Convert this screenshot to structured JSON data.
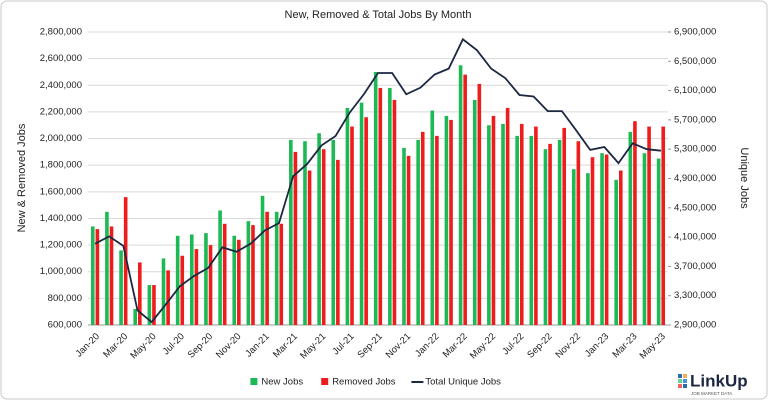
{
  "chart_data": {
    "type": "bar",
    "title": "New, Removed & Total Jobs By Month",
    "ylabel": "New & Removed Jobs",
    "y2label": "Unique Jobs",
    "categories": [
      "Jan-20",
      null,
      "Mar-20",
      null,
      "May-20",
      null,
      "Jul-20",
      null,
      "Sep-20",
      null,
      "Nov-20",
      null,
      "Jan-21",
      null,
      "Mar-21",
      null,
      "May-21",
      null,
      "Jul-21",
      null,
      "Sep-21",
      null,
      "Nov-21",
      null,
      "Jan-22",
      null,
      "Mar-22",
      null,
      "May-22",
      null,
      "Jul-22",
      null,
      "Sep-22",
      null,
      "Nov-22",
      null,
      "Jan-23",
      null,
      "Mar-23",
      null,
      "May-23"
    ],
    "series": [
      {
        "name": "New Jobs",
        "color": "#1db954",
        "type": "bar",
        "values": [
          1340000,
          1450000,
          1160000,
          720000,
          900000,
          1100000,
          1270000,
          1280000,
          1290000,
          1460000,
          1270000,
          1380000,
          1570000,
          1450000,
          1990000,
          1980000,
          2040000,
          1990000,
          2230000,
          2270000,
          2500000,
          2380000,
          1930000,
          1990000,
          2210000,
          2170000,
          2550000,
          2290000,
          2100000,
          2110000,
          2020000,
          2020000,
          1920000,
          1990000,
          1770000,
          1740000,
          1890000,
          1690000,
          2050000,
          1890000,
          1850000
        ]
      },
      {
        "name": "Removed Jobs",
        "color": "#ee1c1c",
        "type": "bar",
        "values": [
          1320000,
          1340000,
          1560000,
          1070000,
          900000,
          1010000,
          1120000,
          1170000,
          1200000,
          1360000,
          1240000,
          1350000,
          1450000,
          1360000,
          1900000,
          1760000,
          1920000,
          1840000,
          2090000,
          2160000,
          2380000,
          2290000,
          1870000,
          2050000,
          2020000,
          2140000,
          2480000,
          2410000,
          2170000,
          2230000,
          2110000,
          2090000,
          1960000,
          2080000,
          1980000,
          1860000,
          1880000,
          1760000,
          2130000,
          2090000,
          2090000
        ]
      },
      {
        "name": "Total Unique Jobs",
        "color": "#1c2841",
        "type": "line",
        "axis": "y2",
        "values": [
          4010000,
          4110000,
          3980000,
          3100000,
          2940000,
          3180000,
          3430000,
          3570000,
          3680000,
          3960000,
          3900000,
          4010000,
          4190000,
          4290000,
          4930000,
          5100000,
          5350000,
          5480000,
          5800000,
          6050000,
          6340000,
          6340000,
          6050000,
          6140000,
          6320000,
          6400000,
          6800000,
          6650000,
          6400000,
          6270000,
          6040000,
          6020000,
          5820000,
          5820000,
          5560000,
          5290000,
          5330000,
          5110000,
          5380000,
          5300000,
          5280000
        ]
      }
    ],
    "ylim": [
      600000,
      2800000
    ],
    "yticks": [
      {
        "value": 600000,
        "label": "600,000"
      },
      {
        "value": 800000,
        "label": "800,000"
      },
      {
        "value": 1000000,
        "label": "1,000,000"
      },
      {
        "value": 1200000,
        "label": "1,200,000"
      },
      {
        "value": 1400000,
        "label": "1,400,000"
      },
      {
        "value": 1600000,
        "label": "1,600,000"
      },
      {
        "value": 1800000,
        "label": "1,800,000"
      },
      {
        "value": 2000000,
        "label": "2,000,000"
      },
      {
        "value": 2200000,
        "label": "2,200,000"
      },
      {
        "value": 2400000,
        "label": "2,400,000"
      },
      {
        "value": 2600000,
        "label": "2,600,000"
      },
      {
        "value": 2800000,
        "label": "2,800,000"
      }
    ],
    "y2lim": [
      2900000,
      6900000
    ],
    "y2ticks": [
      {
        "value": 2900000,
        "label": "2,900,000"
      },
      {
        "value": 3300000,
        "label": "3,300,000"
      },
      {
        "value": 3700000,
        "label": "3,700,000"
      },
      {
        "value": 4100000,
        "label": "4,100,000"
      },
      {
        "value": 4500000,
        "label": "4,500,000"
      },
      {
        "value": 4900000,
        "label": "4,900,000"
      },
      {
        "value": 5300000,
        "label": "5,300,000"
      },
      {
        "value": 5700000,
        "label": "5,700,000"
      },
      {
        "value": 6100000,
        "label": "6,100,000"
      },
      {
        "value": 6500000,
        "label": "6,500,000"
      },
      {
        "value": 6900000,
        "label": "6,900,000"
      }
    ],
    "grid": true,
    "legend": "bottom"
  },
  "logo": {
    "name": "LinkUp",
    "tagline": "JOB MARKET DATA"
  }
}
